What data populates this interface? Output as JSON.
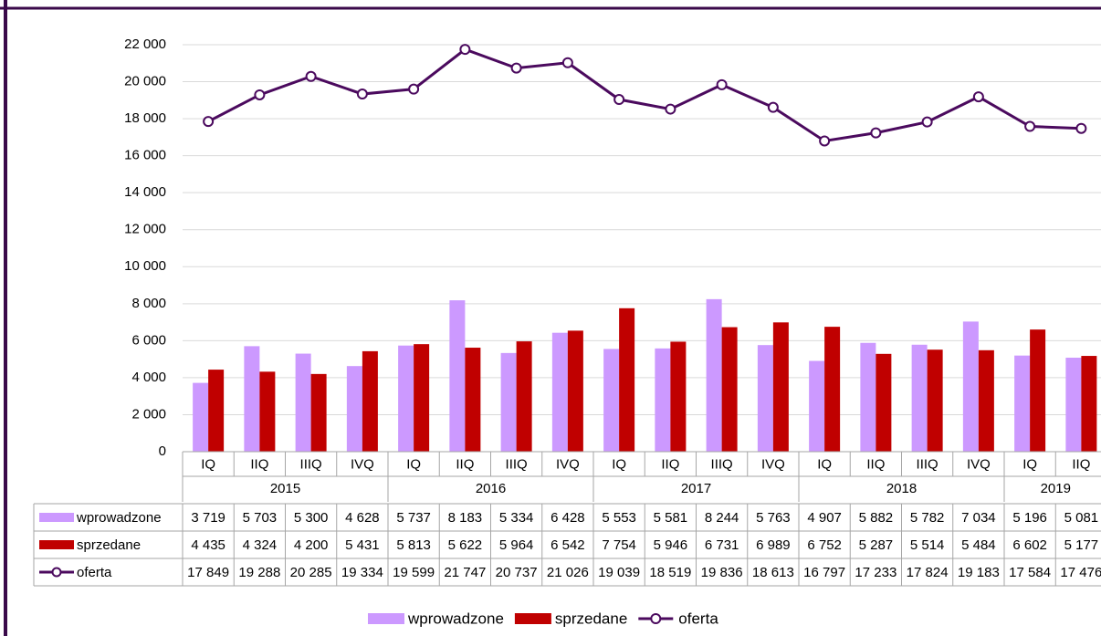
{
  "chart_data": {
    "type": "bar",
    "categories": [
      "IQ",
      "IIQ",
      "IIIQ",
      "IVQ",
      "IQ",
      "IIQ",
      "IIIQ",
      "IVQ",
      "IQ",
      "IIQ",
      "IIIQ",
      "IVQ",
      "IQ",
      "IIQ",
      "IIIQ",
      "IVQ",
      "IQ",
      "IIQ"
    ],
    "groups": [
      {
        "name": "2015",
        "size": 4
      },
      {
        "name": "2016",
        "size": 4
      },
      {
        "name": "2017",
        "size": 4
      },
      {
        "name": "2018",
        "size": 4
      },
      {
        "name": "2019",
        "size": 2
      }
    ],
    "series": [
      {
        "name": "wprowadzone",
        "type": "bar",
        "color": "#cc99ff",
        "values": [
          3719,
          5703,
          5300,
          4628,
          5737,
          8183,
          5334,
          6428,
          5553,
          5581,
          8244,
          5763,
          4907,
          5882,
          5782,
          7034,
          5196,
          5081
        ],
        "value_labels": [
          "3 719",
          "5 703",
          "5 300",
          "4 628",
          "5 737",
          "8 183",
          "5 334",
          "6 428",
          "5 553",
          "5 581",
          "8 244",
          "5 763",
          "4 907",
          "5 882",
          "5 782",
          "7 034",
          "5 196",
          "5 081"
        ]
      },
      {
        "name": "sprzedane",
        "type": "bar",
        "color": "#c00000",
        "values": [
          4435,
          4324,
          4200,
          5431,
          5813,
          5622,
          5964,
          6542,
          7754,
          5946,
          6731,
          6989,
          6752,
          5287,
          5514,
          5484,
          6602,
          5177
        ],
        "value_labels": [
          "4 435",
          "4 324",
          "4 200",
          "5 431",
          "5 813",
          "5 622",
          "5 964",
          "6 542",
          "7 754",
          "5 946",
          "6 731",
          "6 989",
          "6 752",
          "5 287",
          "5 514",
          "5 484",
          "6 602",
          "5 177"
        ]
      },
      {
        "name": "oferta",
        "type": "line",
        "color": "#4b0a5e",
        "values": [
          17849,
          19288,
          20285,
          19334,
          19599,
          21747,
          20737,
          21026,
          19039,
          18519,
          19836,
          18613,
          16797,
          17233,
          17824,
          19183,
          17584,
          17476
        ],
        "value_labels": [
          "17 849",
          "19 288",
          "20 285",
          "19 334",
          "19 599",
          "21 747",
          "20 737",
          "21 026",
          "19 039",
          "18 519",
          "19 836",
          "18 613",
          "16 797",
          "17 233",
          "17 824",
          "19 183",
          "17 584",
          "17 476"
        ]
      }
    ],
    "ylim": [
      0,
      22000
    ],
    "yticks": [
      0,
      {
        "value": 2000,
        "label": "2 000"
      },
      {
        "value": 4000,
        "label": "4 000"
      },
      {
        "value": 6000,
        "label": "6 000"
      },
      {
        "value": 8000,
        "label": "8 000"
      },
      {
        "value": 10000,
        "label": "10 000"
      },
      {
        "value": 12000,
        "label": "12 000"
      },
      {
        "value": 14000,
        "label": "14 000"
      },
      {
        "value": 16000,
        "label": "16 000"
      },
      {
        "value": 18000,
        "label": "18 000"
      },
      {
        "value": 20000,
        "label": "20 000"
      },
      {
        "value": 22000,
        "label": "22 000"
      }
    ],
    "grid": true,
    "legend": "bottom"
  }
}
